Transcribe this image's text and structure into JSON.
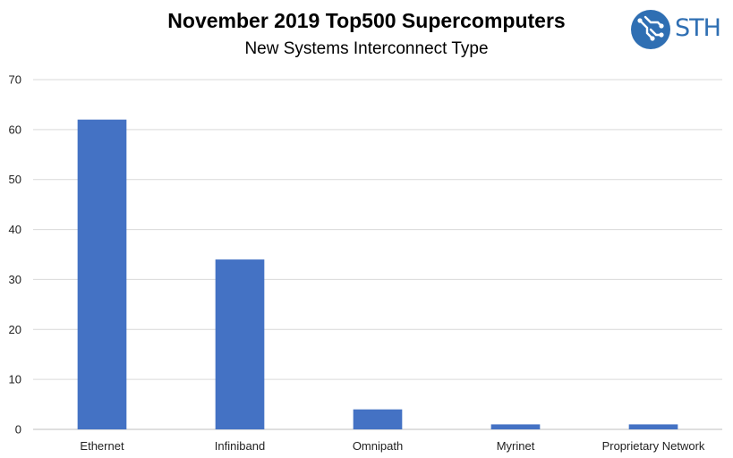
{
  "logo": {
    "text": "STH",
    "icon": "sth-circuit-icon",
    "color": "#2f6fb3"
  },
  "chart_data": {
    "type": "bar",
    "title": "November 2019 Top500 Supercomputers",
    "subtitle": "New Systems Interconnect Type",
    "categories": [
      "Ethernet",
      "Infiniband",
      "Omnipath",
      "Myrinet",
      "Proprietary Network"
    ],
    "values": [
      62,
      34,
      4,
      1,
      1
    ],
    "ylim": [
      0,
      70
    ],
    "yticks": [
      0,
      10,
      20,
      30,
      40,
      50,
      60,
      70
    ],
    "grid": true,
    "bar_color": "#4472c4",
    "xlabel": "",
    "ylabel": ""
  }
}
